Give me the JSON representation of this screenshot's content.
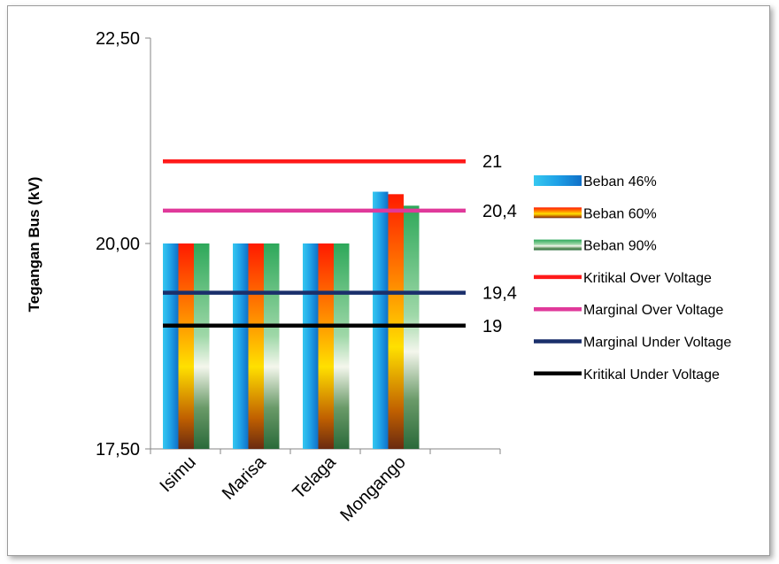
{
  "chart_data": {
    "type": "bar",
    "ylabel": "Tegangan Bus (kV)",
    "categories": [
      "Isimu",
      "Marisa",
      "Telaga",
      "Mongango"
    ],
    "ylim": [
      17.5,
      22.5
    ],
    "yticks": [
      {
        "value": 17.5,
        "label": "17,50"
      },
      {
        "value": 20.0,
        "label": "20,00"
      },
      {
        "value": 22.5,
        "label": "22,50"
      }
    ],
    "series": [
      {
        "name": "Beban 46%",
        "values": [
          20.0,
          20.0,
          20.0,
          20.63
        ],
        "color": "#1ea0e6"
      },
      {
        "name": "Beban 60%",
        "values": [
          20.0,
          20.0,
          20.0,
          20.6
        ],
        "color": "#ff2a00"
      },
      {
        "name": "Beban 90%",
        "values": [
          20.0,
          20.0,
          20.0,
          20.46
        ],
        "color": "#2e9e4f"
      }
    ],
    "reference_lines": [
      {
        "name": "Kritikal Over Voltage",
        "value": 21.0,
        "label": "21",
        "color": "#ff1a1a"
      },
      {
        "name": "Marginal Over Voltage",
        "value": 20.4,
        "label": "20,4",
        "color": "#e0399a"
      },
      {
        "name": "Marginal Under Voltage",
        "value": 19.4,
        "label": "19,4",
        "color": "#1a2f6b"
      },
      {
        "name": "Kritikal Under Voltage",
        "value": 19.0,
        "label": "19",
        "color": "#000000"
      }
    ],
    "grid": false,
    "legend_position": "right"
  }
}
